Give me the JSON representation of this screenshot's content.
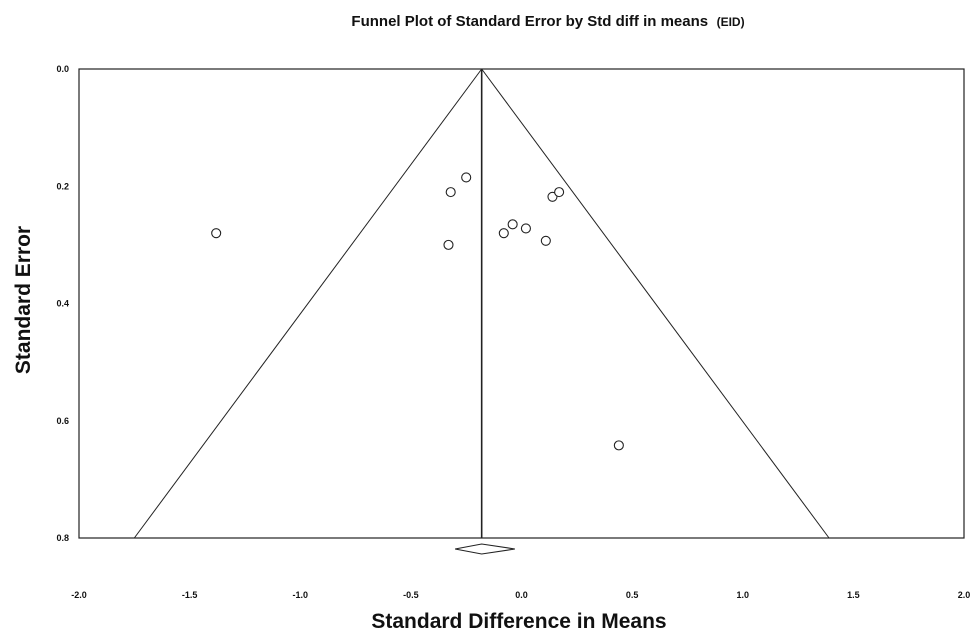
{
  "chart_data": {
    "type": "scatter",
    "title": "Funnel Plot of Standard Error by Std diff in means",
    "subtitle": "(EID)",
    "xlabel": "Standard Difference in Means",
    "ylabel": "Standard Error",
    "xlim": [
      -2.0,
      2.0
    ],
    "ylim": [
      0.0,
      0.8
    ],
    "y_inverted": true,
    "x_ticks": [
      "-2.0",
      "-1.5",
      "-1.0",
      "-0.5",
      "0.0",
      "0.5",
      "1.0",
      "1.5",
      "2.0"
    ],
    "x_tick_values": [
      -2.0,
      -1.5,
      -1.0,
      -0.5,
      0.0,
      0.5,
      1.0,
      1.5,
      2.0
    ],
    "y_ticks": [
      "0.0",
      "0.2",
      "0.4",
      "0.6",
      "0.8"
    ],
    "y_tick_values": [
      0.0,
      0.2,
      0.4,
      0.6,
      0.8
    ],
    "grid": false,
    "summary_effect": -0.18,
    "funnel_limits": {
      "apex": [
        -0.18,
        0.0
      ],
      "left_base": [
        -1.75,
        0.8
      ],
      "right_base": [
        1.39,
        0.8
      ]
    },
    "summary_diamond": {
      "center": -0.18,
      "lower": -0.3,
      "upper": -0.03
    },
    "points": [
      {
        "x": -1.38,
        "y": 0.28
      },
      {
        "x": -0.32,
        "y": 0.21
      },
      {
        "x": -0.25,
        "y": 0.185
      },
      {
        "x": -0.33,
        "y": 0.3
      },
      {
        "x": -0.08,
        "y": 0.28
      },
      {
        "x": -0.04,
        "y": 0.265
      },
      {
        "x": 0.02,
        "y": 0.272
      },
      {
        "x": 0.11,
        "y": 0.293
      },
      {
        "x": 0.14,
        "y": 0.218
      },
      {
        "x": 0.17,
        "y": 0.21
      },
      {
        "x": 0.44,
        "y": 0.642
      }
    ],
    "colors": {
      "line": "#222222",
      "marker_edge": "#222222",
      "marker_fill": "#ffffff"
    }
  }
}
